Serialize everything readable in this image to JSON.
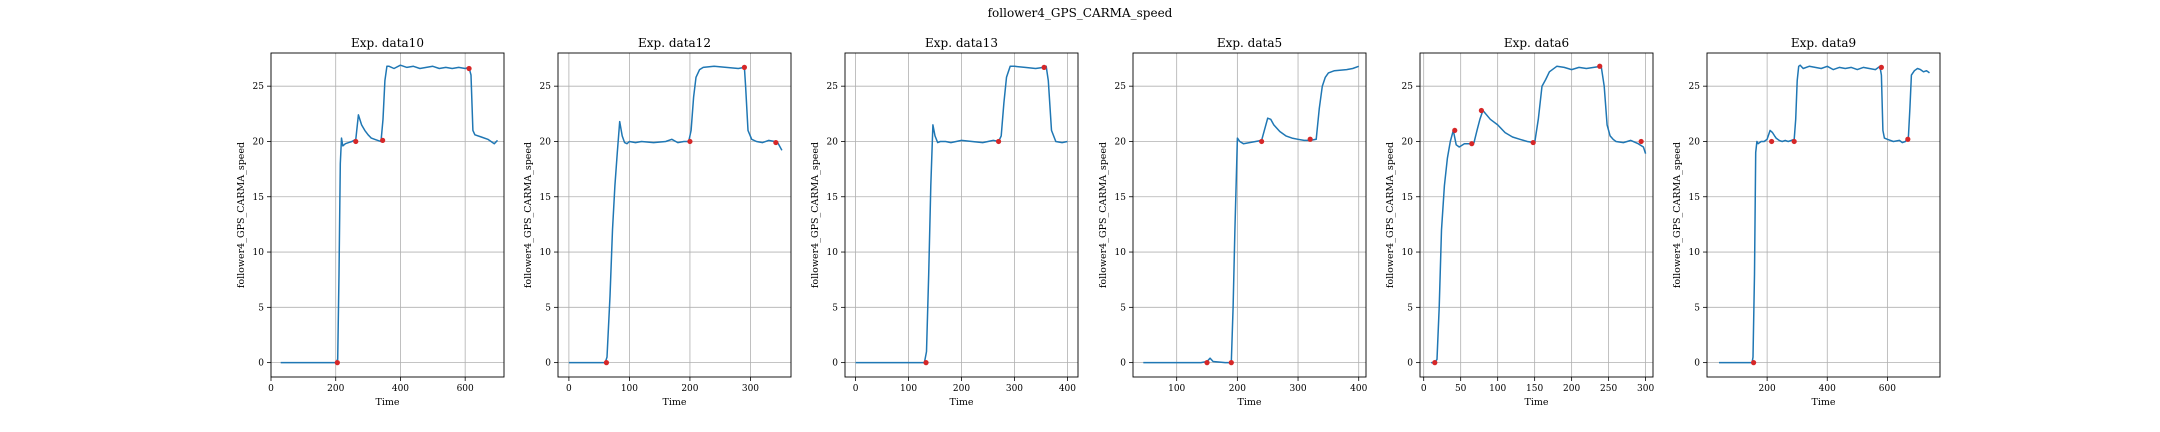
{
  "figure": {
    "title": "follower4_GPS_CARMA_speed"
  },
  "colors": {
    "line": "#1f77b4",
    "marker": "#d62728",
    "grid": "#b0b0b0",
    "axis": "#000000"
  },
  "chart_data": [
    {
      "type": "line",
      "title": "Exp. data10",
      "xlabel": "Time",
      "ylabel": "follower4_GPS_CARMA_speed",
      "xlim": [
        0,
        720
      ],
      "ylim": [
        -1.3,
        28
      ],
      "xticks": [
        0,
        200,
        400,
        600
      ],
      "yticks": [
        0,
        5,
        10,
        15,
        20,
        25
      ],
      "grid": true,
      "series": [
        {
          "x": [
            30,
            100,
            150,
            200,
            206,
            210,
            214,
            218,
            222,
            230,
            240,
            250,
            262,
            270,
            280,
            290,
            300,
            310,
            320,
            330,
            340,
            346,
            352,
            358,
            365,
            380,
            400,
            420,
            440,
            460,
            480,
            500,
            520,
            540,
            560,
            580,
            600,
            612,
            618,
            624,
            630,
            650,
            670,
            690,
            700
          ],
          "y": [
            0,
            0,
            0,
            0,
            0.3,
            8,
            18,
            20.3,
            19.6,
            19.8,
            19.9,
            20,
            20.2,
            22.4,
            21.5,
            21,
            20.6,
            20.3,
            20.2,
            20.1,
            20,
            22,
            25.5,
            26.8,
            26.8,
            26.6,
            26.9,
            26.7,
            26.8,
            26.6,
            26.7,
            26.8,
            26.6,
            26.7,
            26.6,
            26.7,
            26.6,
            26.7,
            26,
            21,
            20.6,
            20.4,
            20.2,
            19.8,
            20.1
          ]
        }
      ],
      "markers": {
        "x": [
          205,
          262,
          345,
          612
        ],
        "y": [
          0,
          20,
          20.1,
          26.6
        ]
      }
    },
    {
      "type": "line",
      "title": "Exp. data12",
      "xlabel": "Time",
      "ylabel": "follower4_GPS_CARMA_speed",
      "xlim": [
        -18,
        367
      ],
      "ylim": [
        -1.3,
        28
      ],
      "xticks": [
        0,
        100,
        200,
        300
      ],
      "yticks": [
        0,
        5,
        10,
        15,
        20,
        25
      ],
      "grid": true,
      "series": [
        {
          "x": [
            0,
            30,
            60,
            63,
            68,
            72,
            76,
            80,
            84,
            88,
            92,
            96,
            100,
            110,
            120,
            140,
            160,
            170,
            180,
            190,
            198,
            202,
            206,
            210,
            216,
            222,
            240,
            260,
            280,
            290,
            292,
            296,
            302,
            310,
            320,
            330,
            340,
            345,
            352
          ],
          "y": [
            0,
            0,
            0,
            0.5,
            6,
            12,
            16,
            19,
            21.8,
            20.5,
            19.9,
            19.8,
            20,
            19.9,
            20,
            19.9,
            20,
            20.2,
            19.9,
            20,
            20,
            21,
            24,
            25.8,
            26.5,
            26.7,
            26.8,
            26.7,
            26.6,
            26.7,
            25,
            21,
            20.2,
            20,
            19.9,
            20.1,
            20,
            19.9,
            19.2
          ]
        }
      ],
      "markers": {
        "x": [
          62,
          200,
          290,
          342
        ],
        "y": [
          0,
          20,
          26.7,
          19.9
        ]
      }
    },
    {
      "type": "line",
      "title": "Exp. data13",
      "xlabel": "Time",
      "ylabel": "follower4_GPS_CARMA_speed",
      "xlim": [
        -20,
        420
      ],
      "ylim": [
        -1.3,
        28
      ],
      "xticks": [
        0,
        100,
        200,
        300,
        400
      ],
      "yticks": [
        0,
        5,
        10,
        15,
        20,
        25
      ],
      "grid": true,
      "series": [
        {
          "x": [
            0,
            50,
            100,
            130,
            134,
            138,
            142,
            146,
            150,
            155,
            160,
            170,
            180,
            200,
            220,
            240,
            260,
            270,
            275,
            280,
            285,
            292,
            300,
            320,
            340,
            355,
            360,
            364,
            370,
            378,
            390,
            400
          ],
          "y": [
            0,
            0,
            0,
            0,
            1,
            8,
            16,
            21.5,
            20.5,
            19.9,
            20,
            20,
            19.9,
            20.1,
            20,
            19.9,
            20.1,
            20,
            20.5,
            23.5,
            25.8,
            26.8,
            26.8,
            26.7,
            26.6,
            26.7,
            26.8,
            25.5,
            21,
            20,
            19.9,
            20
          ]
        }
      ],
      "markers": {
        "x": [
          133,
          270,
          356
        ],
        "y": [
          0,
          20,
          26.7
        ]
      }
    },
    {
      "type": "line",
      "title": "Exp. data5",
      "xlabel": "Time",
      "ylabel": "follower4_GPS_CARMA_speed",
      "xlim": [
        28,
        412
      ],
      "ylim": [
        -1.3,
        28
      ],
      "xticks": [
        100,
        200,
        300,
        400
      ],
      "yticks": [
        0,
        5,
        10,
        15,
        20,
        25
      ],
      "grid": true,
      "series": [
        {
          "x": [
            45,
            100,
            140,
            150,
            155,
            160,
            180,
            190,
            193,
            196,
            200,
            204,
            210,
            220,
            230,
            240,
            250,
            255,
            260,
            270,
            280,
            290,
            300,
            310,
            320,
            330,
            335,
            340,
            345,
            350,
            360,
            380,
            390,
            400
          ],
          "y": [
            0,
            0,
            0,
            0.1,
            0.4,
            0.1,
            0,
            0,
            5,
            12,
            20.3,
            20,
            19.8,
            19.9,
            20,
            20.1,
            22.1,
            22,
            21.5,
            20.9,
            20.5,
            20.3,
            20.2,
            20.1,
            20.1,
            20.2,
            23,
            25,
            25.8,
            26.2,
            26.4,
            26.5,
            26.6,
            26.8
          ]
        }
      ],
      "markers": {
        "x": [
          150,
          190,
          240,
          320
        ],
        "y": [
          0,
          0,
          20,
          20.2
        ]
      }
    },
    {
      "type": "line",
      "title": "Exp. data6",
      "xlabel": "Time",
      "ylabel": "follower4_GPS_CARMA_speed",
      "xlim": [
        -5,
        310
      ],
      "ylim": [
        -1.3,
        28
      ],
      "xticks": [
        0,
        50,
        100,
        150,
        200,
        250,
        300
      ],
      "yticks": [
        0,
        5,
        10,
        15,
        20,
        25
      ],
      "grid": true,
      "series": [
        {
          "x": [
            10,
            15,
            18,
            21,
            24,
            28,
            32,
            36,
            40,
            44,
            48,
            55,
            62,
            68,
            72,
            76,
            80,
            90,
            100,
            110,
            120,
            130,
            140,
            150,
            155,
            160,
            165,
            170,
            180,
            190,
            200,
            210,
            220,
            230,
            240,
            244,
            248,
            252,
            256,
            260,
            270,
            280,
            290,
            297,
            300
          ],
          "y": [
            0,
            0,
            0.3,
            5,
            12,
            16,
            18.5,
            20,
            21,
            19.7,
            19.5,
            19.8,
            19.8,
            19.9,
            21,
            22,
            22.8,
            22,
            21.5,
            20.8,
            20.4,
            20.2,
            20,
            19.9,
            22,
            25,
            25.6,
            26.3,
            26.8,
            26.7,
            26.5,
            26.7,
            26.6,
            26.7,
            26.8,
            25,
            21.5,
            20.5,
            20.2,
            20,
            19.9,
            20.1,
            19.8,
            19.5,
            18.9
          ]
        }
      ],
      "markers": {
        "x": [
          15,
          42,
          65,
          78,
          148,
          238,
          294
        ],
        "y": [
          0,
          21,
          19.8,
          22.8,
          19.9,
          26.8,
          20
        ]
      }
    },
    {
      "type": "line",
      "title": "Exp. data9",
      "xlabel": "Time",
      "ylabel": "follower4_GPS_CARMA_speed",
      "xlim": [
        0,
        775
      ],
      "ylim": [
        -1.3,
        28
      ],
      "xticks": [
        200,
        400,
        600
      ],
      "yticks": [
        0,
        5,
        10,
        15,
        20,
        25
      ],
      "grid": true,
      "series": [
        {
          "x": [
            40,
            100,
            150,
            153,
            158,
            162,
            166,
            170,
            180,
            190,
            200,
            210,
            218,
            225,
            230,
            240,
            250,
            260,
            270,
            280,
            290,
            295,
            300,
            305,
            310,
            320,
            340,
            360,
            380,
            400,
            420,
            440,
            460,
            480,
            500,
            520,
            540,
            560,
            575,
            580,
            585,
            590,
            600,
            620,
            640,
            650,
            660,
            670,
            675,
            680,
            690,
            700,
            710,
            720,
            730,
            740
          ],
          "y": [
            0,
            0,
            0,
            0.5,
            8,
            19,
            20,
            19.8,
            20,
            20,
            20.2,
            21,
            20.8,
            20.5,
            20.3,
            20.1,
            20,
            20.1,
            20,
            20.1,
            20.2,
            22,
            25.5,
            26.8,
            26.9,
            26.6,
            26.8,
            26.7,
            26.6,
            26.8,
            26.5,
            26.7,
            26.6,
            26.7,
            26.5,
            26.7,
            26.6,
            26.5,
            26.8,
            26,
            21,
            20.3,
            20.2,
            20,
            20.1,
            19.9,
            20,
            20.4,
            23,
            26,
            26.4,
            26.6,
            26.5,
            26.3,
            26.4,
            26.2
          ]
        }
      ],
      "markers": {
        "x": [
          155,
          215,
          290,
          580,
          668
        ],
        "y": [
          0,
          20,
          20,
          26.7,
          20.2
        ]
      }
    }
  ]
}
